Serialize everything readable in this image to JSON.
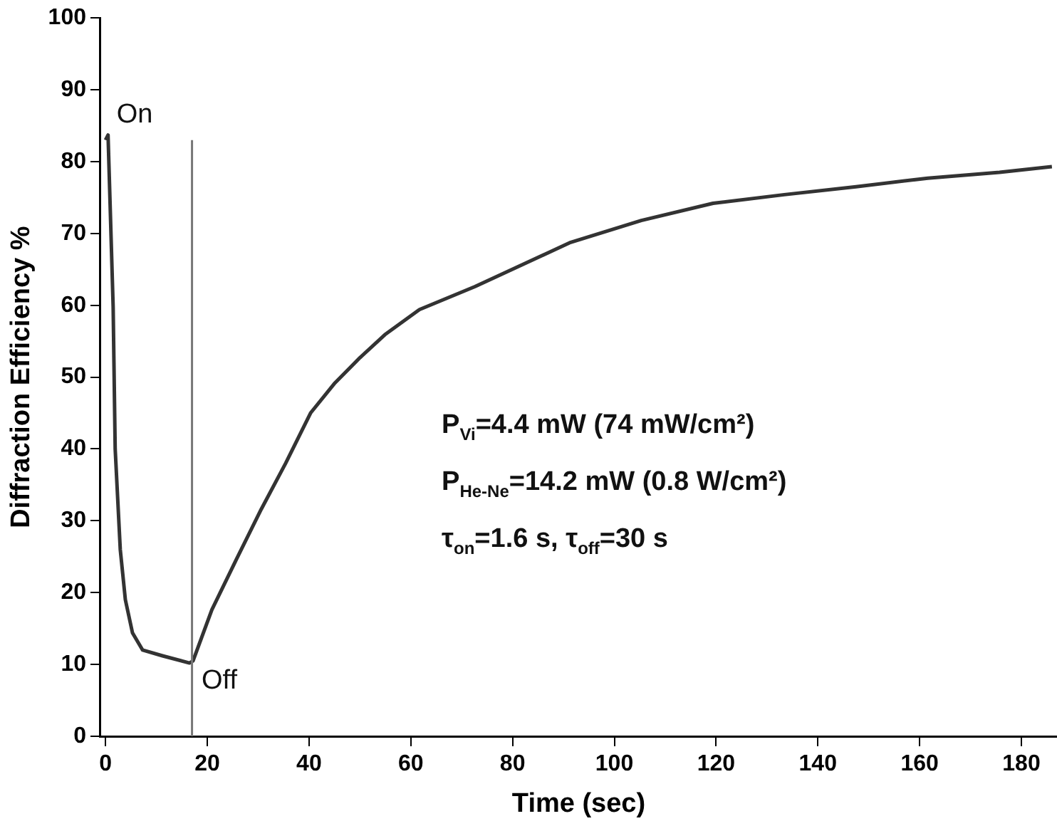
{
  "chart_data": {
    "type": "line",
    "xlabel": "Time (sec)",
    "ylabel": "Diffraction Efficiency %",
    "x": [
      0,
      0.5,
      1.5,
      1.9,
      2.9,
      3.9,
      5.3,
      7.3,
      11.2,
      16.5,
      17.2,
      20.9,
      25.7,
      30.6,
      35.4,
      40.3,
      45.1,
      50,
      54.9,
      61.7,
      72.6,
      91.2,
      105.3,
      119.4,
      133.4,
      147.5,
      161.6,
      175.7,
      186
    ],
    "series": [
      {
        "color": "#333333",
        "values": [
          83,
          83.7,
          59.8,
          40,
          26,
          19,
          14.4,
          12,
          11.2,
          10.2,
          10.5,
          17.6,
          24.6,
          31.6,
          38,
          45,
          49.2,
          52.7,
          55.9,
          59.4,
          62.6,
          68.7,
          71.8,
          74.2,
          75.4,
          76.5,
          77.7,
          78.5,
          79.3
        ]
      }
    ],
    "xlim": [
      -1,
      187
    ],
    "xticks": [
      0,
      20,
      40,
      60,
      80,
      100,
      120,
      140,
      160,
      180
    ],
    "ylim": [
      0,
      100
    ],
    "yticks": [
      0,
      10,
      20,
      30,
      40,
      50,
      60,
      70,
      80,
      90,
      100
    ],
    "grid": false,
    "legend": false,
    "marker": "none",
    "line_style": "solid",
    "ref_lines": [
      {
        "axis": "x",
        "value": 17,
        "color": "#777777"
      }
    ],
    "annotations": [
      {
        "text": "On",
        "x": 0.5,
        "y": 83.7
      },
      {
        "text": "Off",
        "x": 17.2,
        "y": 10.5
      },
      "P$_{Vi}$=4.4 mW (74 mW/cm²)",
      "P$_{He-Ne}$=14.2 mW (0.8 W/cm²)",
      "τ$_{on}$=1.6 s, τ$_{off}$=30 s"
    ]
  }
}
